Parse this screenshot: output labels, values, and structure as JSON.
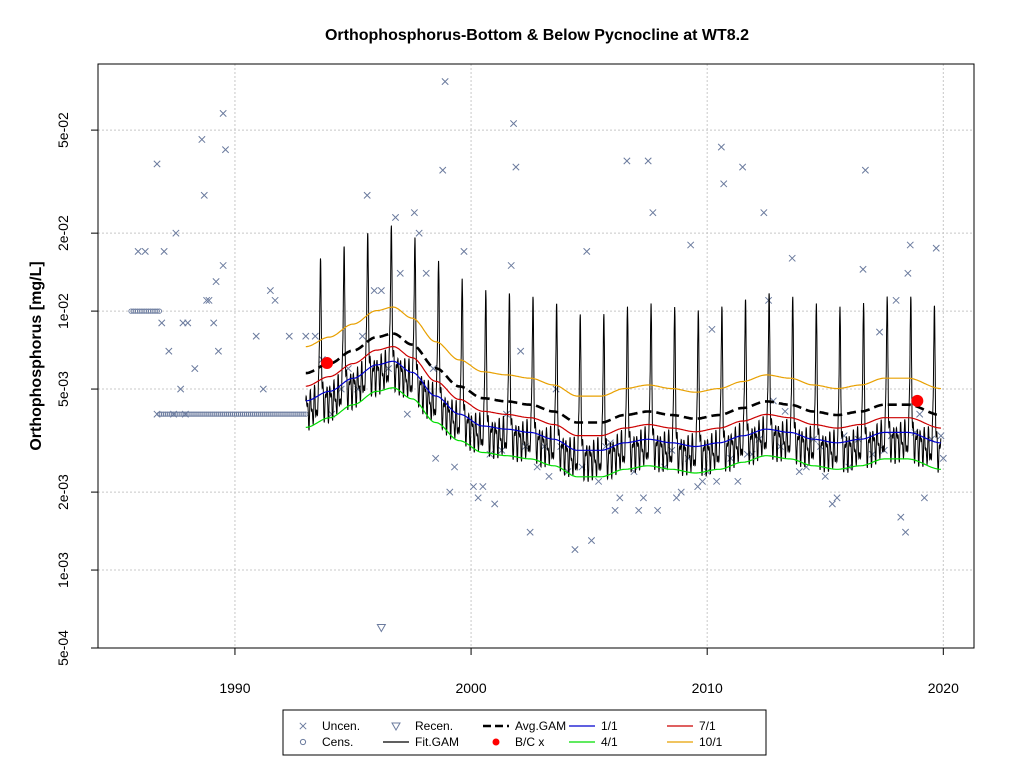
{
  "chart_data": {
    "type": "line",
    "title": "Orthophosphorus-Bottom & Below Pycnocline at WT8.2",
    "xlabel": "",
    "ylabel": "Orthophosphorus [mg/L]",
    "y_scale": "log",
    "xlim": [
      1984.2,
      2021.3
    ],
    "ylim": [
      0.0005,
      0.09
    ],
    "x_ticks": [
      1990,
      2000,
      2010,
      2020
    ],
    "x_tick_labels": [
      "1990",
      "2000",
      "2010",
      "2020"
    ],
    "y_ticks": [
      0.0005,
      0.001,
      0.002,
      0.005,
      0.01,
      0.02,
      0.05
    ],
    "y_tick_labels": [
      "5e-04",
      "1e-03",
      "2e-03",
      "5e-03",
      "1e-02",
      "2e-02",
      "5e-02"
    ],
    "grid": true,
    "legend_placement": "bottom",
    "colors": {
      "uncen": "#6b7b9e",
      "cens": "#6b7b9e",
      "recen": "#6b7b9e",
      "fit_gam": "#000000",
      "avg_gam": "#000000",
      "bc": "#ff0000",
      "q1_1": "#0000cd",
      "q7_1": "#cc0000",
      "q4_1": "#00dd00",
      "q10_1": "#e8a000",
      "grid": "#c8c8c8"
    },
    "legend": [
      {
        "key": "uncen",
        "label": "Uncen.",
        "symbol": "x"
      },
      {
        "key": "cens",
        "label": "Cens.",
        "symbol": "o"
      },
      {
        "key": "recen",
        "label": "Recen.",
        "symbol": "triangle"
      },
      {
        "key": "fit_gam",
        "label": "Fit.GAM",
        "symbol": "line"
      },
      {
        "key": "avg_gam",
        "label": "Avg.GAM",
        "symbol": "dash"
      },
      {
        "key": "bc",
        "label": "B/C x",
        "symbol": "dot"
      },
      {
        "key": "q1_1",
        "label": "1/1",
        "symbol": "line"
      },
      {
        "key": "q4_1",
        "label": "4/1",
        "symbol": "line"
      },
      {
        "key": "q7_1",
        "label": "7/1",
        "symbol": "line"
      },
      {
        "key": "q10_1",
        "label": "10/1",
        "symbol": "line"
      }
    ],
    "uncensored": [
      [
        1985.9,
        0.017
      ],
      [
        1986.2,
        0.017
      ],
      [
        1986.7,
        0.037
      ],
      [
        1986.9,
        0.009
      ],
      [
        1987.0,
        0.017
      ],
      [
        1987.2,
        0.007
      ],
      [
        1987.5,
        0.02
      ],
      [
        1987.7,
        0.005
      ],
      [
        1987.8,
        0.009
      ],
      [
        1988.0,
        0.009
      ],
      [
        1988.3,
        0.006
      ],
      [
        1988.6,
        0.046
      ],
      [
        1988.7,
        0.028
      ],
      [
        1988.8,
        0.011
      ],
      [
        1988.9,
        0.011
      ],
      [
        1989.1,
        0.009
      ],
      [
        1989.2,
        0.013
      ],
      [
        1989.3,
        0.007
      ],
      [
        1989.5,
        0.015
      ],
      [
        1989.6,
        0.042
      ],
      [
        1989.5,
        0.058
      ],
      [
        1986.7,
        0.004
      ],
      [
        1987.4,
        0.004
      ],
      [
        1987.9,
        0.004
      ],
      [
        1990.9,
        0.008
      ],
      [
        1991.2,
        0.005
      ],
      [
        1991.5,
        0.012
      ],
      [
        1991.7,
        0.011
      ],
      [
        1992.3,
        0.008
      ],
      [
        1993.0,
        0.008
      ],
      [
        1993.4,
        0.008
      ],
      [
        1993.7,
        0.0065
      ],
      [
        1994.1,
        0.004
      ],
      [
        1994.5,
        0.005
      ],
      [
        1994.8,
        0.006
      ],
      [
        1995.2,
        0.005
      ],
      [
        1995.4,
        0.008
      ],
      [
        1995.6,
        0.028
      ],
      [
        1995.9,
        0.012
      ],
      [
        1996.2,
        0.012
      ],
      [
        1996.5,
        0.006
      ],
      [
        1996.8,
        0.023
      ],
      [
        1997.0,
        0.014
      ],
      [
        1997.3,
        0.004
      ],
      [
        1997.6,
        0.024
      ],
      [
        1997.8,
        0.02
      ],
      [
        1998.1,
        0.014
      ],
      [
        1998.4,
        0.006
      ],
      [
        1998.5,
        0.0027
      ],
      [
        1998.8,
        0.035
      ],
      [
        1998.9,
        0.077
      ],
      [
        1999.1,
        0.002
      ],
      [
        1999.3,
        0.0025
      ],
      [
        1999.7,
        0.017
      ],
      [
        2000.1,
        0.0021
      ],
      [
        2000.3,
        0.0019
      ],
      [
        2000.5,
        0.0021
      ],
      [
        2000.8,
        0.0028
      ],
      [
        2001.0,
        0.0018
      ],
      [
        2001.3,
        0.0029
      ],
      [
        2001.5,
        0.004
      ],
      [
        2001.7,
        0.015
      ],
      [
        2001.8,
        0.053
      ],
      [
        2001.9,
        0.036
      ],
      [
        2002.1,
        0.007
      ],
      [
        2002.3,
        0.003
      ],
      [
        2002.5,
        0.0014
      ],
      [
        2002.8,
        0.0025
      ],
      [
        2003.1,
        0.003
      ],
      [
        2003.3,
        0.0023
      ],
      [
        2003.6,
        0.005
      ],
      [
        2003.8,
        0.003
      ],
      [
        2004.1,
        0.0024
      ],
      [
        2004.4,
        0.0012
      ],
      [
        2004.7,
        0.0025
      ],
      [
        2004.9,
        0.017
      ],
      [
        2005.1,
        0.0013
      ],
      [
        2005.4,
        0.0022
      ],
      [
        2005.7,
        0.003
      ],
      [
        2005.9,
        0.0031
      ],
      [
        2006.1,
        0.0017
      ],
      [
        2006.3,
        0.0019
      ],
      [
        2006.6,
        0.038
      ],
      [
        2006.9,
        0.0024
      ],
      [
        2007.1,
        0.0017
      ],
      [
        2007.3,
        0.0019
      ],
      [
        2007.5,
        0.038
      ],
      [
        2007.7,
        0.024
      ],
      [
        2007.9,
        0.0017
      ],
      [
        2008.2,
        0.0025
      ],
      [
        2008.5,
        0.0029
      ],
      [
        2008.7,
        0.0019
      ],
      [
        2008.9,
        0.002
      ],
      [
        2009.2,
        0.0027
      ],
      [
        2009.3,
        0.018
      ],
      [
        2009.6,
        0.0021
      ],
      [
        2009.8,
        0.0022
      ],
      [
        2010.0,
        0.0024
      ],
      [
        2010.2,
        0.0085
      ],
      [
        2010.4,
        0.0022
      ],
      [
        2010.6,
        0.043
      ],
      [
        2010.7,
        0.031
      ],
      [
        2011.0,
        0.0027
      ],
      [
        2011.3,
        0.0022
      ],
      [
        2011.5,
        0.036
      ],
      [
        2011.7,
        0.0028
      ],
      [
        2011.9,
        0.0028
      ],
      [
        2012.2,
        0.0032
      ],
      [
        2012.4,
        0.024
      ],
      [
        2012.6,
        0.011
      ],
      [
        2012.8,
        0.0045
      ],
      [
        2013.1,
        0.003
      ],
      [
        2013.3,
        0.0041
      ],
      [
        2013.6,
        0.016
      ],
      [
        2013.9,
        0.0024
      ],
      [
        2014.2,
        0.0025
      ],
      [
        2014.5,
        0.0032
      ],
      [
        2014.8,
        0.003
      ],
      [
        2015.0,
        0.0023
      ],
      [
        2015.3,
        0.0018
      ],
      [
        2015.5,
        0.0019
      ],
      [
        2015.8,
        0.0033
      ],
      [
        2016.0,
        0.0025
      ],
      [
        2016.4,
        0.0032
      ],
      [
        2016.6,
        0.0145
      ],
      [
        2016.7,
        0.035
      ],
      [
        2017.0,
        0.0028
      ],
      [
        2017.3,
        0.0083
      ],
      [
        2017.5,
        0.0029
      ],
      [
        2017.8,
        0.0033
      ],
      [
        2018.0,
        0.011
      ],
      [
        2018.2,
        0.0016
      ],
      [
        2018.4,
        0.0014
      ],
      [
        2018.5,
        0.014
      ],
      [
        2018.6,
        0.018
      ],
      [
        2018.8,
        0.0034
      ],
      [
        2019.0,
        0.004
      ],
      [
        2019.2,
        0.0019
      ],
      [
        2019.5,
        0.0032
      ],
      [
        2019.7,
        0.0175
      ],
      [
        2019.9,
        0.0033
      ],
      [
        2020.0,
        0.0027
      ]
    ],
    "censored": {
      "x_start": 1985.6,
      "x_end": 1986.8,
      "y": 0.01,
      "count": 14,
      "x_start2": 1986.8,
      "x_end2": 1993.0,
      "y2": 0.004,
      "count2": 75
    },
    "recensored": [
      [
        1996.2,
        0.0006
      ]
    ],
    "bc_points": [
      [
        1993.9,
        0.0063
      ],
      [
        2018.9,
        0.0045
      ]
    ],
    "gam": {
      "x_start": 1993.0,
      "x_end": 2019.9,
      "knots": [
        [
          1993.0,
          0.0045
        ],
        [
          1994.0,
          0.0049
        ],
        [
          1995.0,
          0.0055
        ],
        [
          1996.0,
          0.0062
        ],
        [
          1996.7,
          0.0064
        ],
        [
          1997.5,
          0.0058
        ],
        [
          1998.5,
          0.0047
        ],
        [
          1999.5,
          0.004
        ],
        [
          2000.5,
          0.0036
        ],
        [
          2001.5,
          0.0035
        ],
        [
          2002.5,
          0.0034
        ],
        [
          2003.5,
          0.0032
        ],
        [
          2004.5,
          0.0029
        ],
        [
          2005.5,
          0.0029
        ],
        [
          2006.5,
          0.0031
        ],
        [
          2007.5,
          0.0032
        ],
        [
          2008.5,
          0.0031
        ],
        [
          2009.5,
          0.003
        ],
        [
          2010.5,
          0.0031
        ],
        [
          2011.5,
          0.0033
        ],
        [
          2012.5,
          0.0035
        ],
        [
          2013.5,
          0.0034
        ],
        [
          2014.5,
          0.0032
        ],
        [
          2015.5,
          0.0031
        ],
        [
          2016.5,
          0.0032
        ],
        [
          2017.5,
          0.0034
        ],
        [
          2018.5,
          0.0034
        ],
        [
          2019.9,
          0.0031
        ]
      ],
      "ratio_4_1": 0.79,
      "ratio_7_1": 1.14,
      "ratio_10_1": 1.62,
      "ratio_avg": 1.28,
      "seasonal_amp_high": 4.0
    }
  }
}
